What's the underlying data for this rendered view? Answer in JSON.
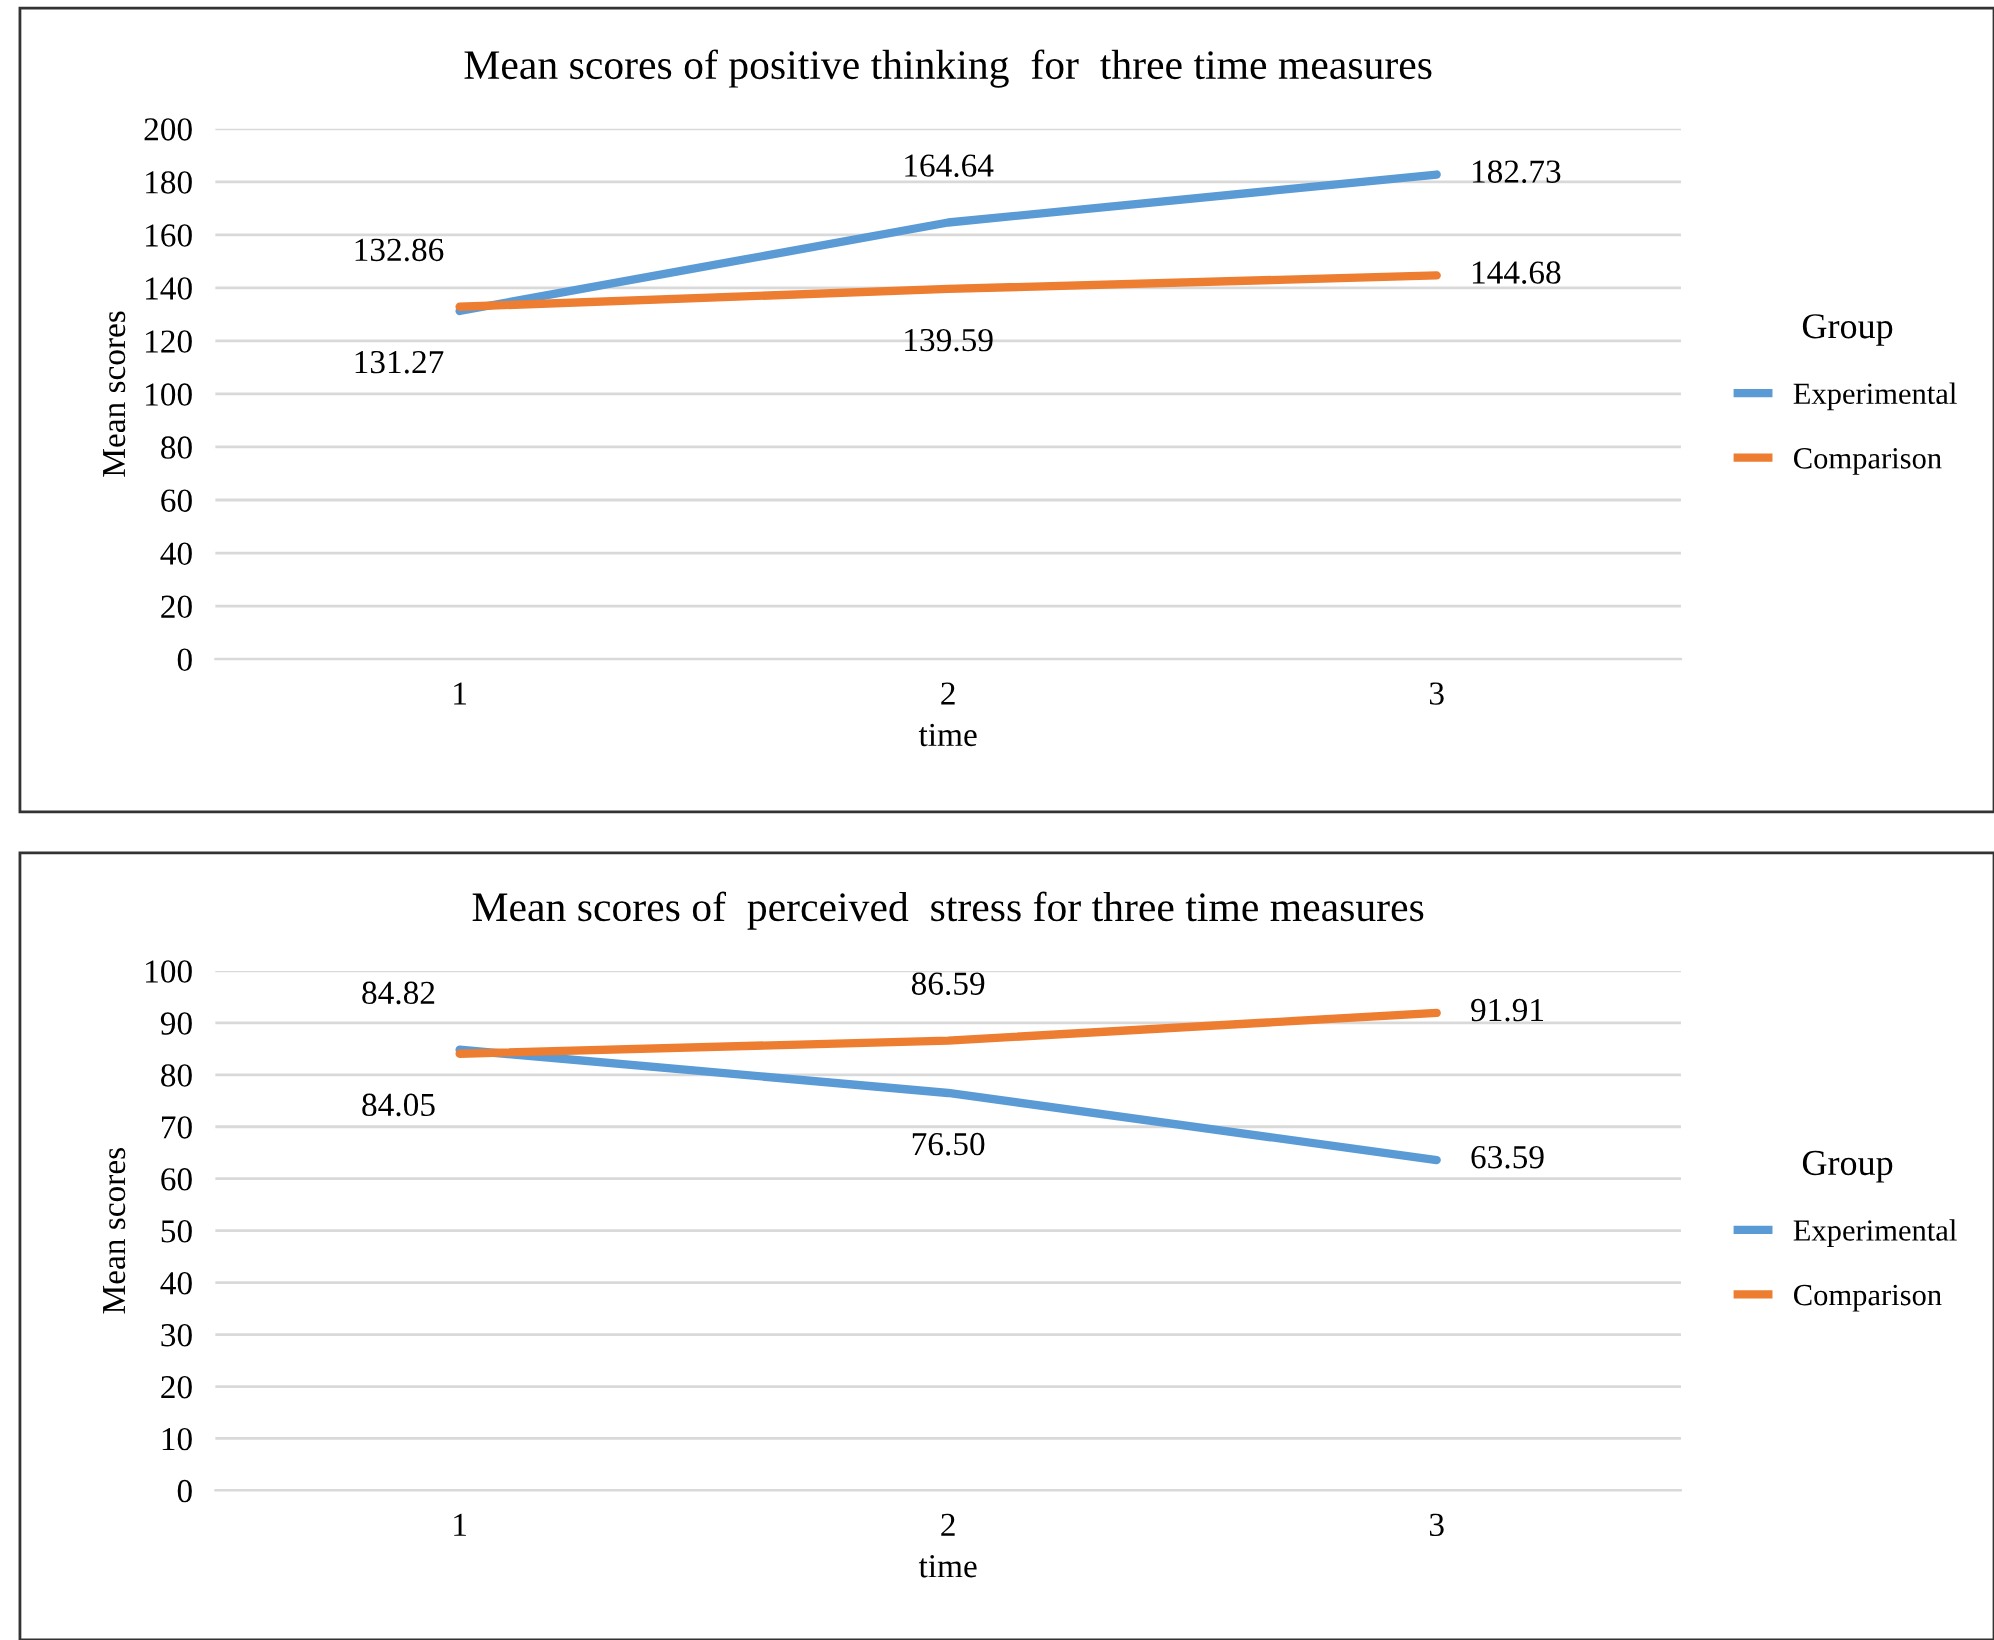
{
  "chart_data": [
    {
      "type": "line",
      "title": "Mean scores of positive thinking  for  three time measures",
      "xlabel": "time",
      "ylabel": "Mean scores",
      "legend_title": "Group",
      "legend": "right",
      "grid": "y",
      "categories": [
        "1",
        "2",
        "3"
      ],
      "ylim": [
        0,
        200
      ],
      "yticks": [
        0,
        20,
        40,
        60,
        80,
        100,
        120,
        140,
        160,
        180,
        200
      ],
      "series": [
        {
          "name": "Experimental",
          "color": "#5b9bd5",
          "values": [
            131.27,
            164.64,
            182.73
          ],
          "value_labels": [
            "131.27",
            "164.64",
            "182.73"
          ]
        },
        {
          "name": "Comparison",
          "color": "#ed7d31",
          "values": [
            132.86,
            139.59,
            144.68
          ],
          "value_labels": [
            "132.86",
            "139.59",
            "144.68"
          ]
        }
      ]
    },
    {
      "type": "line",
      "title": "Mean scores of  perceived  stress for three time measures",
      "xlabel": "time",
      "ylabel": "Mean scores",
      "legend_title": "Group",
      "legend": "right",
      "grid": "y",
      "categories": [
        "1",
        "2",
        "3"
      ],
      "ylim": [
        0,
        100
      ],
      "yticks": [
        0,
        10,
        20,
        30,
        40,
        50,
        60,
        70,
        80,
        90,
        100
      ],
      "series": [
        {
          "name": "Experimental",
          "color": "#5b9bd5",
          "values": [
            84.82,
            76.5,
            63.59
          ],
          "value_labels": [
            "84.82",
            "76.50",
            "63.59"
          ]
        },
        {
          "name": "Comparison",
          "color": "#ed7d31",
          "values": [
            84.05,
            86.59,
            91.91
          ],
          "value_labels": [
            "84.05",
            "86.59",
            "91.91"
          ]
        }
      ]
    }
  ]
}
